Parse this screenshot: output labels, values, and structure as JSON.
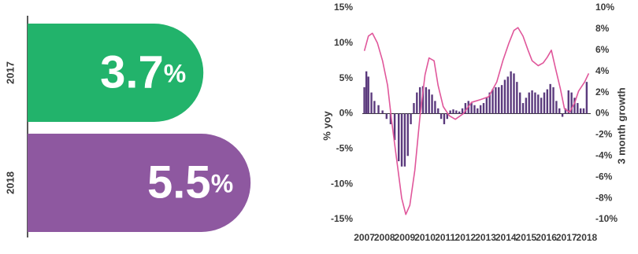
{
  "chart_data": [
    {
      "type": "bar",
      "categories": [
        "2017",
        "2018"
      ],
      "values": [
        3.7,
        5.5
      ],
      "value_labels": [
        "3.7%",
        "5.5%"
      ],
      "colors": [
        "#22b36b",
        "#8e58a0"
      ]
    },
    {
      "type": "combo",
      "y_label": "% yoy",
      "y2_label": "3 month growth",
      "xlim": [
        2006.9,
        2018.2
      ],
      "xticks": [
        2007,
        2008,
        2009,
        2010,
        2011,
        2012,
        2013,
        2014,
        2015,
        2016,
        2017,
        2018
      ],
      "ylim": [
        -15,
        15
      ],
      "yticks": [
        {
          "value": -15,
          "label": "-15%"
        },
        {
          "value": -10,
          "label": "-10%"
        },
        {
          "value": -5,
          "label": "-5%"
        },
        {
          "value": 0,
          "label": "0%"
        },
        {
          "value": 5,
          "label": "5%"
        },
        {
          "value": 10,
          "label": "10%"
        },
        {
          "value": 15,
          "label": "15%"
        }
      ],
      "y2lim": [
        -10,
        10
      ],
      "y2ticks": [
        {
          "value": -10,
          "label": "-10%"
        },
        {
          "value": -8,
          "label": "-8%"
        },
        {
          "value": -6,
          "label": "-6%"
        },
        {
          "value": -4,
          "label": "-4%"
        },
        {
          "value": -2,
          "label": "-2%"
        },
        {
          "value": 0,
          "label": "0%"
        },
        {
          "value": 2,
          "label": "2%"
        },
        {
          "value": 4,
          "label": "4%"
        },
        {
          "value": 6,
          "label": "6%"
        },
        {
          "value": 8,
          "label": "8%"
        },
        {
          "value": 10,
          "label": "10%"
        }
      ],
      "series": [
        {
          "type": "bar",
          "axis": "y2",
          "color": "#5b3a7d",
          "x": [
            2007.0,
            2007.1,
            2007.2,
            2007.35,
            2007.5,
            2007.7,
            2007.9,
            2008.1,
            2008.3,
            2008.5,
            2008.7,
            2008.85,
            2009.0,
            2009.15,
            2009.3,
            2009.45,
            2009.6,
            2009.75,
            2009.9,
            2010.05,
            2010.2,
            2010.35,
            2010.5,
            2010.65,
            2010.8,
            2010.95,
            2011.1,
            2011.25,
            2011.4,
            2011.55,
            2011.7,
            2011.85,
            2012.0,
            2012.15,
            2012.3,
            2012.45,
            2012.6,
            2012.75,
            2012.9,
            2013.05,
            2013.2,
            2013.35,
            2013.5,
            2013.65,
            2013.8,
            2013.95,
            2014.1,
            2014.25,
            2014.4,
            2014.55,
            2014.7,
            2014.85,
            2015.0,
            2015.15,
            2015.3,
            2015.45,
            2015.6,
            2015.75,
            2015.9,
            2016.05,
            2016.2,
            2016.35,
            2016.5,
            2016.65,
            2016.8,
            2016.95,
            2017.1,
            2017.25,
            2017.4,
            2017.55,
            2017.7,
            2017.85,
            2018.0
          ],
          "values": [
            2.5,
            4.0,
            3.5,
            2.0,
            1.2,
            0.8,
            0.3,
            -0.5,
            -1.0,
            -2.5,
            -4.5,
            -5.0,
            -5.0,
            -4.0,
            -1.0,
            1.0,
            2.0,
            2.5,
            2.6,
            2.5,
            2.3,
            1.8,
            1.2,
            0.5,
            -0.5,
            -1.0,
            -0.5,
            0.3,
            0.4,
            0.3,
            0.2,
            0.5,
            1.0,
            1.2,
            1.0,
            0.8,
            0.5,
            0.8,
            1.0,
            1.5,
            2.0,
            2.3,
            2.5,
            2.5,
            2.7,
            3.2,
            3.5,
            4.0,
            3.8,
            3.0,
            2.0,
            1.0,
            1.5,
            2.0,
            2.2,
            2.0,
            1.8,
            1.5,
            2.0,
            2.3,
            2.8,
            2.5,
            1.2,
            0.5,
            -0.3,
            0.5,
            2.2,
            2.0,
            1.5,
            1.0,
            0.5,
            0.5,
            3.0
          ]
        },
        {
          "type": "line",
          "color": "#e0579b",
          "x": [
            2007.0,
            2007.2,
            2007.4,
            2007.65,
            2007.9,
            2008.15,
            2008.35,
            2008.6,
            2008.85,
            2009.05,
            2009.25,
            2009.5,
            2009.75,
            2010.0,
            2010.2,
            2010.45,
            2010.65,
            2010.9,
            2011.2,
            2011.5,
            2011.9,
            2012.3,
            2012.75,
            2013.15,
            2013.55,
            2013.85,
            2014.15,
            2014.4,
            2014.6,
            2014.85,
            2015.1,
            2015.3,
            2015.6,
            2015.85,
            2016.05,
            2016.25,
            2016.45,
            2016.7,
            2016.9,
            2017.15,
            2017.4,
            2017.6,
            2017.9,
            2018.1
          ],
          "values": [
            8.9,
            11.0,
            11.4,
            10.0,
            7.5,
            4.0,
            -1.0,
            -6.5,
            -12.0,
            -14.3,
            -13.0,
            -8.0,
            -0.5,
            5.5,
            7.9,
            7.5,
            4.0,
            1.0,
            -0.3,
            -0.8,
            0.0,
            1.6,
            2.0,
            2.4,
            4.5,
            7.5,
            10.0,
            11.8,
            12.2,
            11.0,
            9.0,
            7.5,
            6.8,
            7.2,
            8.0,
            9.0,
            6.5,
            3.5,
            0.7,
            0.2,
            1.5,
            3.2,
            4.5,
            5.7
          ]
        }
      ]
    }
  ]
}
